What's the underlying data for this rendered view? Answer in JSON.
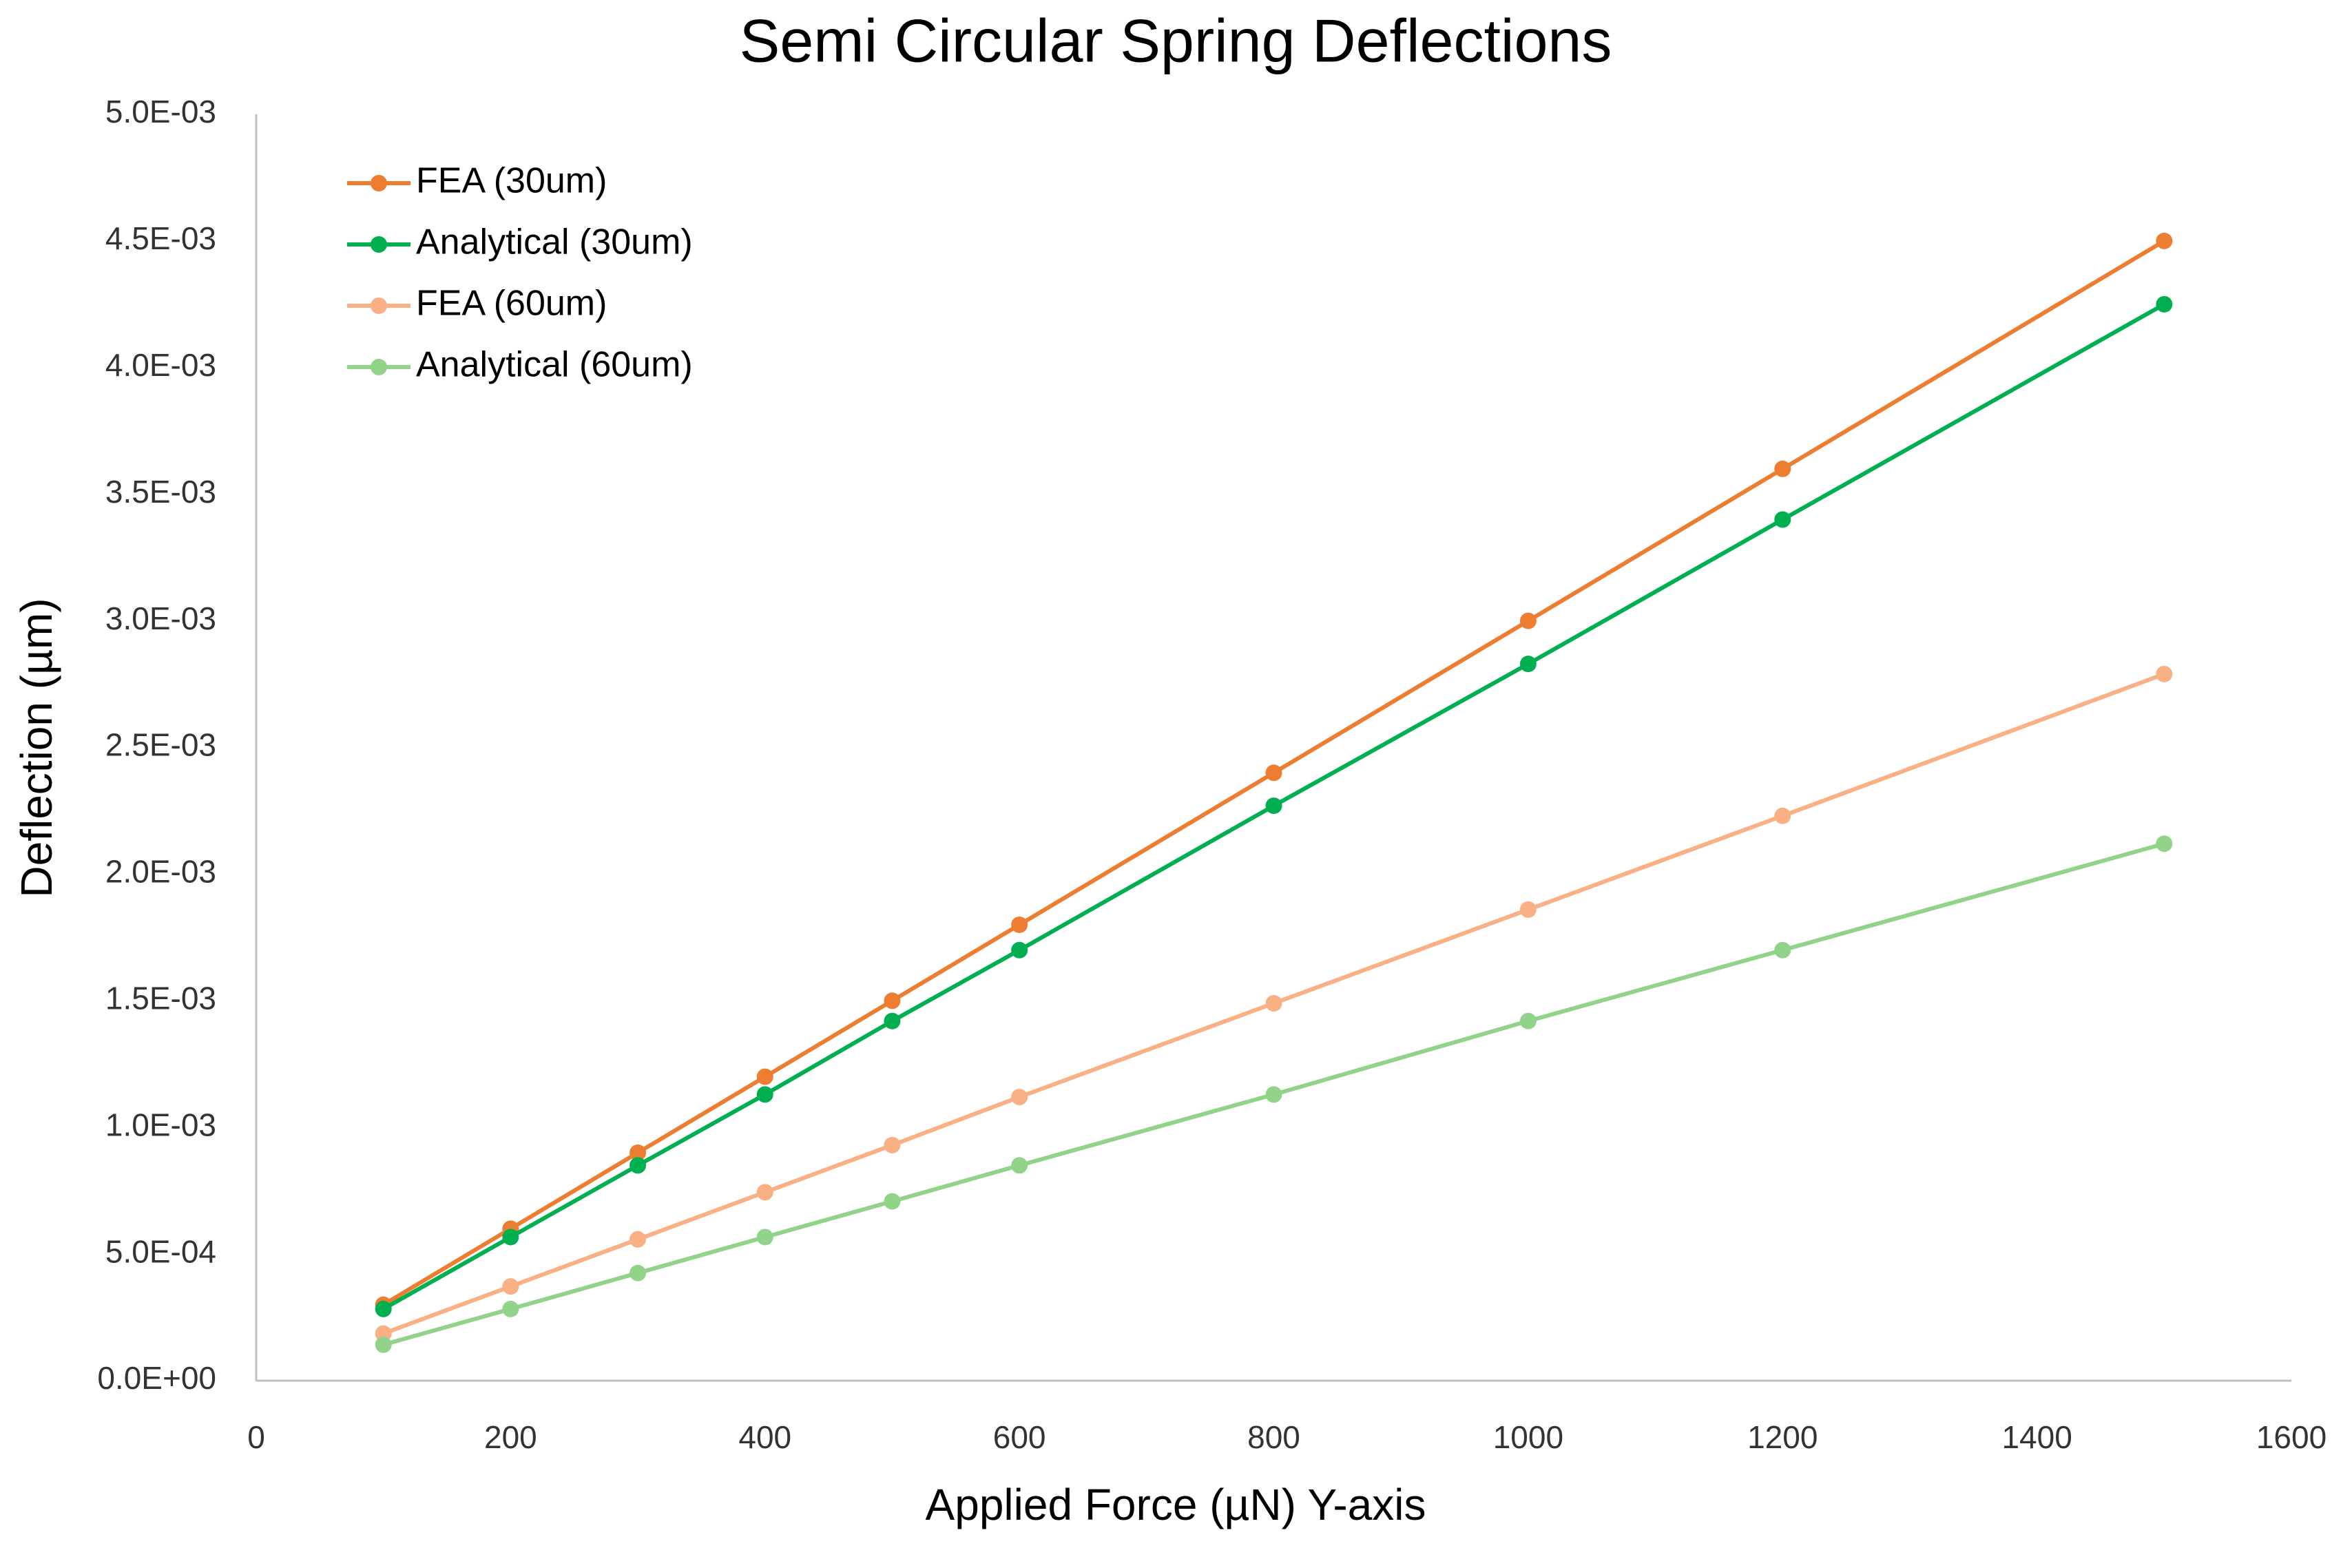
{
  "chart_data": {
    "type": "line",
    "title": "Semi Circular Spring Deflections",
    "x_label": "Applied Force (µN) Y-axis",
    "y_label": "Deflection (µm)",
    "x": [
      100,
      200,
      300,
      400,
      500,
      600,
      800,
      1000,
      1200,
      1500
    ],
    "series": [
      {
        "name": "FEA (30um)",
        "color": "#ed7d31",
        "values": [
          0.0003,
          0.0006,
          0.0009,
          0.0012,
          0.0015,
          0.0018,
          0.0024,
          0.003,
          0.0036,
          0.0045
        ]
      },
      {
        "name": "Analytical (30um)",
        "color": "#00b050",
        "values": [
          0.000283,
          0.000567,
          0.00085,
          0.00113,
          0.00142,
          0.0017,
          0.00227,
          0.00283,
          0.0034,
          0.00425
        ]
      },
      {
        "name": "FEA (60um)",
        "color": "#f8b084",
        "values": [
          0.000186,
          0.000372,
          0.000558,
          0.000744,
          0.00093,
          0.00112,
          0.00149,
          0.00186,
          0.00223,
          0.00279
        ]
      },
      {
        "name": "Analytical (60um)",
        "color": "#92d38a",
        "values": [
          0.000142,
          0.000283,
          0.000425,
          0.000567,
          0.000708,
          0.00085,
          0.00113,
          0.00142,
          0.0017,
          0.00212
        ]
      }
    ],
    "xlim": [
      0,
      1600
    ],
    "xticks": [
      0,
      200,
      400,
      600,
      800,
      1000,
      1200,
      1400,
      1600
    ],
    "ylim": [
      0,
      0.005
    ],
    "yticks": [
      {
        "value": 0,
        "label": "0.0E+00"
      },
      {
        "value": 0.0005,
        "label": "5.0E-04"
      },
      {
        "value": 0.001,
        "label": "1.0E-03"
      },
      {
        "value": 0.0015,
        "label": "1.5E-03"
      },
      {
        "value": 0.002,
        "label": "2.0E-03"
      },
      {
        "value": 0.0025,
        "label": "2.5E-03"
      },
      {
        "value": 0.003,
        "label": "3.0E-03"
      },
      {
        "value": 0.0035,
        "label": "3.5E-03"
      },
      {
        "value": 0.004,
        "label": "4.0E-03"
      },
      {
        "value": 0.0045,
        "label": "4.5E-03"
      },
      {
        "value": 0.005,
        "label": "5.0E-03"
      }
    ],
    "grid": false,
    "legend": "upper-left"
  }
}
